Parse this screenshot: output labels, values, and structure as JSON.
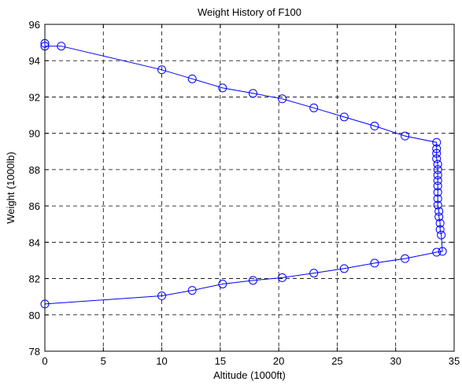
{
  "chart_data": {
    "type": "line",
    "title": "Weight History of F100",
    "xlabel": "Altitude (1000ft)",
    "ylabel": "Weight (1000lb)",
    "xlim": [
      0,
      35
    ],
    "ylim": [
      78,
      96
    ],
    "xticks": [
      "0",
      "5",
      "10",
      "15",
      "20",
      "25",
      "30",
      "35"
    ],
    "yticks": [
      "78",
      "80",
      "82",
      "84",
      "86",
      "88",
      "90",
      "92",
      "94",
      "96"
    ],
    "grid": true,
    "line_color": "#0000ff",
    "marker": "circle",
    "series": [
      {
        "x": [
          0.0,
          0.0,
          1.4,
          10.0,
          12.6,
          15.2,
          17.8,
          20.3,
          23.0,
          25.6,
          28.2,
          30.8,
          33.5,
          33.5,
          33.5,
          33.5,
          33.6,
          33.6,
          33.6,
          33.6,
          33.6,
          33.6,
          33.6,
          33.6,
          33.7,
          33.7,
          33.8,
          33.8,
          33.9,
          34.0,
          33.5,
          30.8,
          28.2,
          25.6,
          23.0,
          20.3,
          17.8,
          15.2,
          12.6,
          10.0,
          0.0
        ],
        "y": [
          94.95,
          94.8,
          94.8,
          93.5,
          93.0,
          92.5,
          92.2,
          91.9,
          91.4,
          90.9,
          90.4,
          89.85,
          89.5,
          89.15,
          88.9,
          88.6,
          88.3,
          88.0,
          87.7,
          87.4,
          87.1,
          86.75,
          86.4,
          86.05,
          85.7,
          85.4,
          85.05,
          84.7,
          84.4,
          83.5,
          83.45,
          83.1,
          82.85,
          82.55,
          82.3,
          82.05,
          81.9,
          81.7,
          81.35,
          81.05,
          80.6
        ]
      }
    ]
  }
}
